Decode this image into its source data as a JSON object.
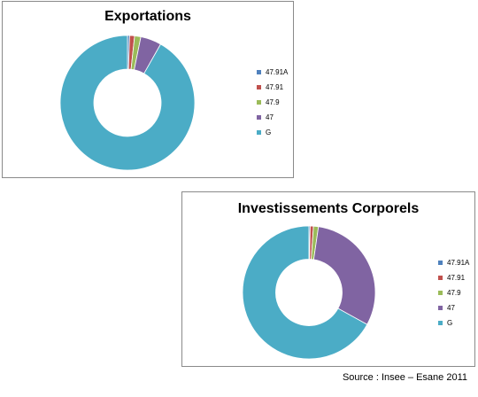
{
  "colors": [
    "#4f81bd",
    "#c0504d",
    "#9bbb59",
    "#8064a2",
    "#4bacc6"
  ],
  "chart_data": [
    {
      "type": "pie",
      "title": "Exportations",
      "labels": [
        "47.91A",
        "47.91",
        "47.9",
        "47",
        "G"
      ],
      "values": [
        0.5,
        1.2,
        1.5,
        5.0,
        91.8
      ],
      "legend": "right"
    },
    {
      "type": "pie",
      "title": "Investissements Corporels",
      "labels": [
        "47.91A",
        "47.91",
        "47.9",
        "47",
        "G"
      ],
      "values": [
        0.3,
        0.8,
        1.2,
        30.7,
        67.0
      ],
      "legend": "right"
    }
  ],
  "footer": {
    "source": "Source : Insee – Esane 2011"
  }
}
